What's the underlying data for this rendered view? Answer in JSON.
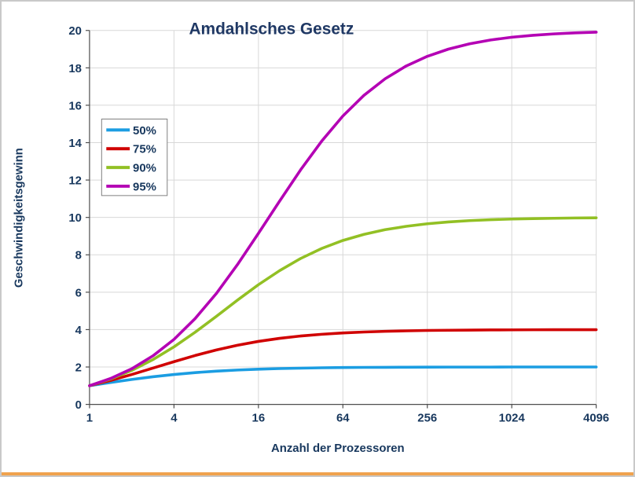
{
  "frame": {
    "background": "#ffffff",
    "border_color": "#c9c9c9",
    "bottom_strip_color": "#f0a24e"
  },
  "styles": {
    "title_color": "#1F3864",
    "tick_color": "#17375D",
    "axis_color": "#4D4D4D",
    "grid_color": "#D8D8D8",
    "legend_border": "#7F7F7F",
    "legend_background": "#FFFFFF"
  },
  "chart_data": {
    "type": "line",
    "title": "Amdahlsches Gesetz",
    "xlabel": "Anzahl der Prozessoren",
    "ylabel": "Geschwindigkeitsgewinn",
    "x_scale": "log2",
    "xlim": [
      1,
      4096
    ],
    "ylim": [
      0,
      20
    ],
    "grid": true,
    "legend_position": "upper-left-inside",
    "x_ticks": [
      1,
      4,
      16,
      64,
      256,
      1024,
      4096
    ],
    "y_ticks": [
      0,
      2,
      4,
      6,
      8,
      10,
      12,
      14,
      16,
      18,
      20
    ],
    "x": [
      1,
      1.414,
      2,
      2.828,
      4,
      5.657,
      8,
      11.314,
      16,
      22.627,
      32,
      45.255,
      64,
      90.51,
      128,
      181.019,
      256,
      362.039,
      512,
      724.077,
      1024,
      1448.155,
      2048,
      2896.309,
      4096
    ],
    "series": [
      {
        "name": "50%",
        "color": "#1B9DE2",
        "values": [
          1,
          1.172,
          1.333,
          1.478,
          1.6,
          1.7,
          1.778,
          1.838,
          1.882,
          1.915,
          1.939,
          1.957,
          1.969,
          1.978,
          1.984,
          1.989,
          1.992,
          1.994,
          1.996,
          1.997,
          1.998,
          1.999,
          1.999,
          1.999,
          2.0
        ]
      },
      {
        "name": "75%",
        "color": "#D00000",
        "values": [
          1,
          1.281,
          1.6,
          1.941,
          2.286,
          2.614,
          2.909,
          3.162,
          3.368,
          3.532,
          3.657,
          3.751,
          3.821,
          3.872,
          3.908,
          3.935,
          3.954,
          3.967,
          3.977,
          3.983,
          3.988,
          3.992,
          3.994,
          3.996,
          3.997
        ]
      },
      {
        "name": "90%",
        "color": "#92C024",
        "values": [
          1,
          1.358,
          1.818,
          2.391,
          3.077,
          3.859,
          4.706,
          5.57,
          6.4,
          7.154,
          7.805,
          8.341,
          8.767,
          9.096,
          9.343,
          9.526,
          9.66,
          9.757,
          9.827,
          9.877,
          9.913,
          9.938,
          9.956,
          9.969,
          9.978
        ]
      },
      {
        "name": "95%",
        "color": "#B400B4",
        "values": [
          1,
          1.385,
          1.905,
          2.592,
          3.478,
          4.588,
          5.926,
          7.466,
          9.143,
          10.867,
          12.549,
          14.087,
          15.422,
          16.53,
          17.415,
          18.1,
          18.618,
          19.003,
          19.284,
          19.489,
          19.636,
          19.741,
          19.816,
          19.87,
          19.908
        ]
      }
    ]
  }
}
